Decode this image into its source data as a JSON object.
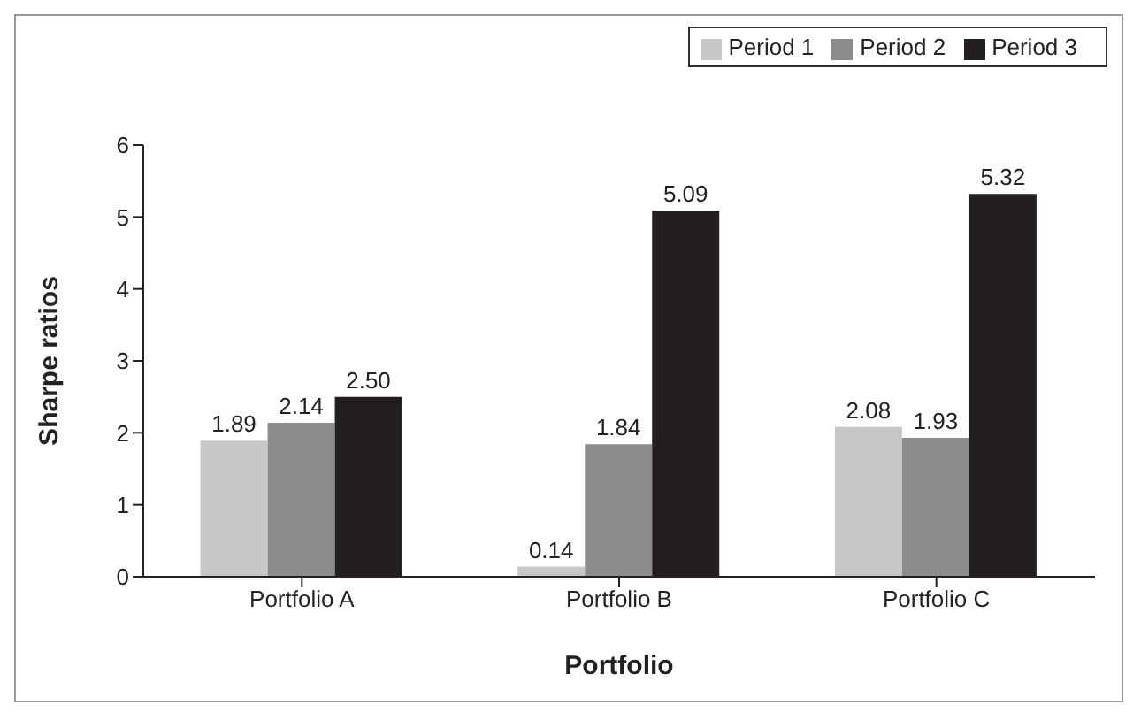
{
  "chart_data": {
    "type": "bar",
    "xlabel": "Portfolio",
    "ylabel": "Sharpe ratios",
    "categories": [
      "Portfolio A",
      "Portfolio B",
      "Portfolio C"
    ],
    "series": [
      {
        "name": "Period 1",
        "color": "#c8c8c8",
        "values": [
          1.89,
          0.14,
          2.08
        ],
        "value_labels": [
          "1.89",
          "0.14",
          "2.08"
        ]
      },
      {
        "name": "Period 2",
        "color": "#8c8c8c",
        "values": [
          2.14,
          1.84,
          1.93
        ],
        "value_labels": [
          "2.14",
          "1.84",
          "1.93"
        ]
      },
      {
        "name": "Period 3",
        "color": "#231f20",
        "values": [
          2.5,
          5.09,
          5.32
        ],
        "value_labels": [
          "2.50",
          "5.09",
          "5.32"
        ]
      }
    ],
    "ylim": [
      0,
      6
    ],
    "yticks": [
      0,
      1,
      2,
      3,
      4,
      5,
      6
    ],
    "grid": false,
    "legend": "top right"
  }
}
